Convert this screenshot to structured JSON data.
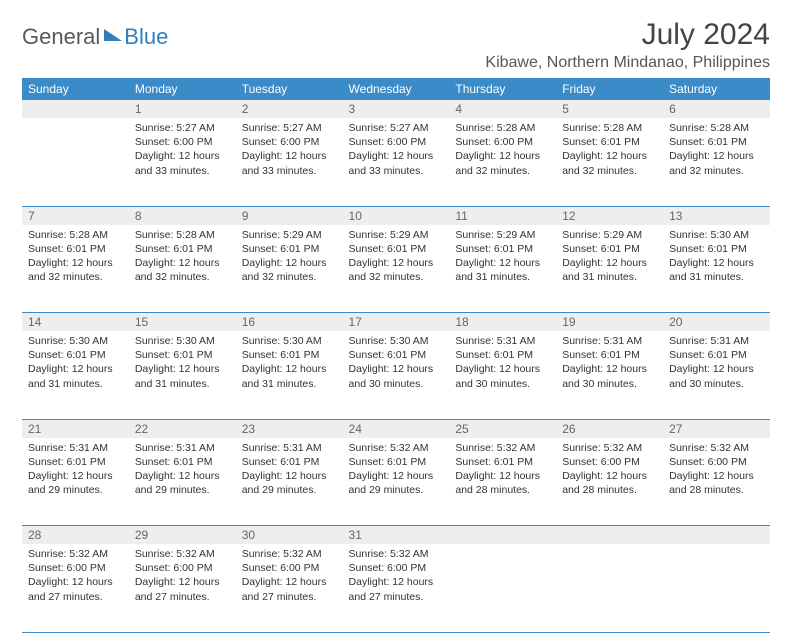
{
  "logo": {
    "text1": "General",
    "text2": "Blue"
  },
  "title": "July 2024",
  "subtitle": "Kibawe, Northern Mindanao, Philippines",
  "colors": {
    "header_bg": "#3b8bc9",
    "header_text": "#ffffff",
    "daynum_bg": "#eeeeee",
    "daynum_text": "#666666",
    "border": "#3b8bc9",
    "body_text": "#333333",
    "logo_gray": "#5a5a5a",
    "logo_blue": "#2f7fbf"
  },
  "day_headers": [
    "Sunday",
    "Monday",
    "Tuesday",
    "Wednesday",
    "Thursday",
    "Friday",
    "Saturday"
  ],
  "weeks": [
    [
      {
        "num": "",
        "lines": []
      },
      {
        "num": "1",
        "lines": [
          "Sunrise: 5:27 AM",
          "Sunset: 6:00 PM",
          "Daylight: 12 hours",
          "and 33 minutes."
        ]
      },
      {
        "num": "2",
        "lines": [
          "Sunrise: 5:27 AM",
          "Sunset: 6:00 PM",
          "Daylight: 12 hours",
          "and 33 minutes."
        ]
      },
      {
        "num": "3",
        "lines": [
          "Sunrise: 5:27 AM",
          "Sunset: 6:00 PM",
          "Daylight: 12 hours",
          "and 33 minutes."
        ]
      },
      {
        "num": "4",
        "lines": [
          "Sunrise: 5:28 AM",
          "Sunset: 6:00 PM",
          "Daylight: 12 hours",
          "and 32 minutes."
        ]
      },
      {
        "num": "5",
        "lines": [
          "Sunrise: 5:28 AM",
          "Sunset: 6:01 PM",
          "Daylight: 12 hours",
          "and 32 minutes."
        ]
      },
      {
        "num": "6",
        "lines": [
          "Sunrise: 5:28 AM",
          "Sunset: 6:01 PM",
          "Daylight: 12 hours",
          "and 32 minutes."
        ]
      }
    ],
    [
      {
        "num": "7",
        "lines": [
          "Sunrise: 5:28 AM",
          "Sunset: 6:01 PM",
          "Daylight: 12 hours",
          "and 32 minutes."
        ]
      },
      {
        "num": "8",
        "lines": [
          "Sunrise: 5:28 AM",
          "Sunset: 6:01 PM",
          "Daylight: 12 hours",
          "and 32 minutes."
        ]
      },
      {
        "num": "9",
        "lines": [
          "Sunrise: 5:29 AM",
          "Sunset: 6:01 PM",
          "Daylight: 12 hours",
          "and 32 minutes."
        ]
      },
      {
        "num": "10",
        "lines": [
          "Sunrise: 5:29 AM",
          "Sunset: 6:01 PM",
          "Daylight: 12 hours",
          "and 32 minutes."
        ]
      },
      {
        "num": "11",
        "lines": [
          "Sunrise: 5:29 AM",
          "Sunset: 6:01 PM",
          "Daylight: 12 hours",
          "and 31 minutes."
        ]
      },
      {
        "num": "12",
        "lines": [
          "Sunrise: 5:29 AM",
          "Sunset: 6:01 PM",
          "Daylight: 12 hours",
          "and 31 minutes."
        ]
      },
      {
        "num": "13",
        "lines": [
          "Sunrise: 5:30 AM",
          "Sunset: 6:01 PM",
          "Daylight: 12 hours",
          "and 31 minutes."
        ]
      }
    ],
    [
      {
        "num": "14",
        "lines": [
          "Sunrise: 5:30 AM",
          "Sunset: 6:01 PM",
          "Daylight: 12 hours",
          "and 31 minutes."
        ]
      },
      {
        "num": "15",
        "lines": [
          "Sunrise: 5:30 AM",
          "Sunset: 6:01 PM",
          "Daylight: 12 hours",
          "and 31 minutes."
        ]
      },
      {
        "num": "16",
        "lines": [
          "Sunrise: 5:30 AM",
          "Sunset: 6:01 PM",
          "Daylight: 12 hours",
          "and 31 minutes."
        ]
      },
      {
        "num": "17",
        "lines": [
          "Sunrise: 5:30 AM",
          "Sunset: 6:01 PM",
          "Daylight: 12 hours",
          "and 30 minutes."
        ]
      },
      {
        "num": "18",
        "lines": [
          "Sunrise: 5:31 AM",
          "Sunset: 6:01 PM",
          "Daylight: 12 hours",
          "and 30 minutes."
        ]
      },
      {
        "num": "19",
        "lines": [
          "Sunrise: 5:31 AM",
          "Sunset: 6:01 PM",
          "Daylight: 12 hours",
          "and 30 minutes."
        ]
      },
      {
        "num": "20",
        "lines": [
          "Sunrise: 5:31 AM",
          "Sunset: 6:01 PM",
          "Daylight: 12 hours",
          "and 30 minutes."
        ]
      }
    ],
    [
      {
        "num": "21",
        "lines": [
          "Sunrise: 5:31 AM",
          "Sunset: 6:01 PM",
          "Daylight: 12 hours",
          "and 29 minutes."
        ]
      },
      {
        "num": "22",
        "lines": [
          "Sunrise: 5:31 AM",
          "Sunset: 6:01 PM",
          "Daylight: 12 hours",
          "and 29 minutes."
        ]
      },
      {
        "num": "23",
        "lines": [
          "Sunrise: 5:31 AM",
          "Sunset: 6:01 PM",
          "Daylight: 12 hours",
          "and 29 minutes."
        ]
      },
      {
        "num": "24",
        "lines": [
          "Sunrise: 5:32 AM",
          "Sunset: 6:01 PM",
          "Daylight: 12 hours",
          "and 29 minutes."
        ]
      },
      {
        "num": "25",
        "lines": [
          "Sunrise: 5:32 AM",
          "Sunset: 6:01 PM",
          "Daylight: 12 hours",
          "and 28 minutes."
        ]
      },
      {
        "num": "26",
        "lines": [
          "Sunrise: 5:32 AM",
          "Sunset: 6:00 PM",
          "Daylight: 12 hours",
          "and 28 minutes."
        ]
      },
      {
        "num": "27",
        "lines": [
          "Sunrise: 5:32 AM",
          "Sunset: 6:00 PM",
          "Daylight: 12 hours",
          "and 28 minutes."
        ]
      }
    ],
    [
      {
        "num": "28",
        "lines": [
          "Sunrise: 5:32 AM",
          "Sunset: 6:00 PM",
          "Daylight: 12 hours",
          "and 27 minutes."
        ]
      },
      {
        "num": "29",
        "lines": [
          "Sunrise: 5:32 AM",
          "Sunset: 6:00 PM",
          "Daylight: 12 hours",
          "and 27 minutes."
        ]
      },
      {
        "num": "30",
        "lines": [
          "Sunrise: 5:32 AM",
          "Sunset: 6:00 PM",
          "Daylight: 12 hours",
          "and 27 minutes."
        ]
      },
      {
        "num": "31",
        "lines": [
          "Sunrise: 5:32 AM",
          "Sunset: 6:00 PM",
          "Daylight: 12 hours",
          "and 27 minutes."
        ]
      },
      {
        "num": "",
        "lines": []
      },
      {
        "num": "",
        "lines": []
      },
      {
        "num": "",
        "lines": []
      }
    ]
  ]
}
